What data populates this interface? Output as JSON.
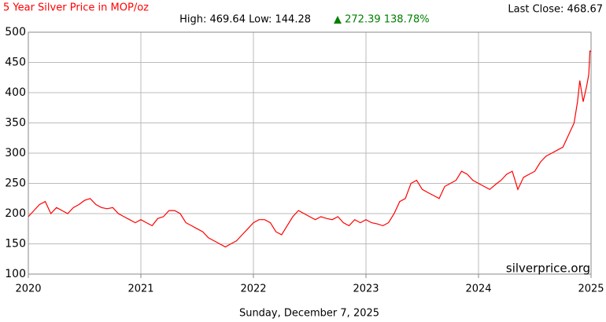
{
  "chart_data": {
    "type": "line",
    "title": "5 Year Silver Price in MOP/oz",
    "stats": "High: 469.64 Low: 144.28",
    "change": "▲ 272.39 138.78%",
    "last_close": "Last Close: 468.67",
    "watermark": "silverprice.org",
    "date": "Sunday, December 7, 2025",
    "xlim": [
      2020,
      2025
    ],
    "xticks": [
      2020,
      2021,
      2022,
      2023,
      2024,
      2025
    ],
    "ylim": [
      100,
      500
    ],
    "yticks": [
      100,
      150,
      200,
      250,
      300,
      350,
      400,
      450,
      500
    ],
    "grid": true,
    "series": [
      {
        "name": "Silver",
        "color": "#ff0000",
        "x": [
          2020.0,
          2020.05,
          2020.1,
          2020.15,
          2020.2,
          2020.25,
          2020.3,
          2020.35,
          2020.4,
          2020.45,
          2020.5,
          2020.55,
          2020.6,
          2020.65,
          2020.7,
          2020.75,
          2020.8,
          2020.85,
          2020.9,
          2020.95,
          2021.0,
          2021.05,
          2021.1,
          2021.15,
          2021.2,
          2021.25,
          2021.3,
          2021.35,
          2021.4,
          2021.45,
          2021.5,
          2021.55,
          2021.6,
          2021.65,
          2021.7,
          2021.75,
          2021.8,
          2021.85,
          2021.9,
          2021.95,
          2022.0,
          2022.05,
          2022.1,
          2022.15,
          2022.2,
          2022.25,
          2022.3,
          2022.35,
          2022.4,
          2022.45,
          2022.5,
          2022.55,
          2022.6,
          2022.65,
          2022.7,
          2022.75,
          2022.8,
          2022.85,
          2022.9,
          2022.95,
          2023.0,
          2023.05,
          2023.1,
          2023.15,
          2023.2,
          2023.25,
          2023.3,
          2023.35,
          2023.4,
          2023.45,
          2023.5,
          2023.55,
          2023.6,
          2023.65,
          2023.7,
          2023.75,
          2023.8,
          2023.85,
          2023.9,
          2023.95,
          2024.0,
          2024.05,
          2024.1,
          2024.15,
          2024.2,
          2024.25,
          2024.3,
          2024.35,
          2024.4,
          2024.45,
          2024.5,
          2024.55,
          2024.6,
          2024.65,
          2024.7,
          2024.75,
          2024.8,
          2024.85,
          2024.88,
          2024.9,
          2024.93,
          2024.96,
          2024.98,
          2024.99,
          2025.0
        ],
        "values": [
          195,
          205,
          215,
          220,
          200,
          210,
          205,
          200,
          210,
          215,
          222,
          225,
          215,
          210,
          208,
          210,
          200,
          195,
          190,
          185,
          190,
          185,
          180,
          192,
          195,
          205,
          205,
          200,
          185,
          180,
          175,
          170,
          160,
          155,
          150,
          145,
          150,
          155,
          165,
          175,
          185,
          190,
          190,
          185,
          170,
          165,
          180,
          195,
          205,
          200,
          195,
          190,
          195,
          192,
          190,
          195,
          185,
          180,
          190,
          185,
          190,
          185,
          183,
          180,
          185,
          200,
          220,
          225,
          250,
          255,
          240,
          235,
          230,
          225,
          245,
          250,
          255,
          270,
          265,
          255,
          250,
          245,
          240,
          248,
          255,
          265,
          270,
          240,
          260,
          265,
          270,
          285,
          295,
          300,
          305,
          310,
          330,
          350,
          385,
          420,
          385,
          410,
          430,
          469,
          468
        ]
      }
    ]
  }
}
